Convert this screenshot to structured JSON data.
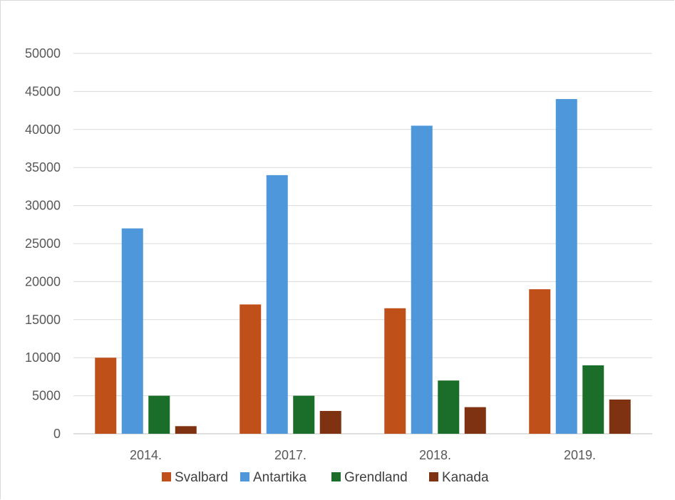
{
  "chart_data": {
    "type": "bar",
    "title": "",
    "xlabel": "",
    "ylabel": "",
    "categories": [
      "2014.",
      "2017.",
      "2018.",
      "2019."
    ],
    "series": [
      {
        "name": "Svalbard",
        "color": "#c0501a",
        "values": [
          10000,
          17000,
          16500,
          19000
        ]
      },
      {
        "name": "Antartika",
        "color": "#4f97db",
        "values": [
          27000,
          34000,
          40500,
          44000
        ]
      },
      {
        "name": "Grendland",
        "color": "#1b6e2a",
        "values": [
          5000,
          5000,
          7000,
          9000
        ]
      },
      {
        "name": "Kanada",
        "color": "#7f3212",
        "values": [
          1000,
          3000,
          3500,
          4500
        ]
      }
    ],
    "ylim": [
      0,
      50000
    ],
    "yticks": [
      "0",
      "5000",
      "10000",
      "15000",
      "20000",
      "25000",
      "30000",
      "35000",
      "40000",
      "45000",
      "50000"
    ],
    "grid": true,
    "legend_position": "bottom"
  }
}
